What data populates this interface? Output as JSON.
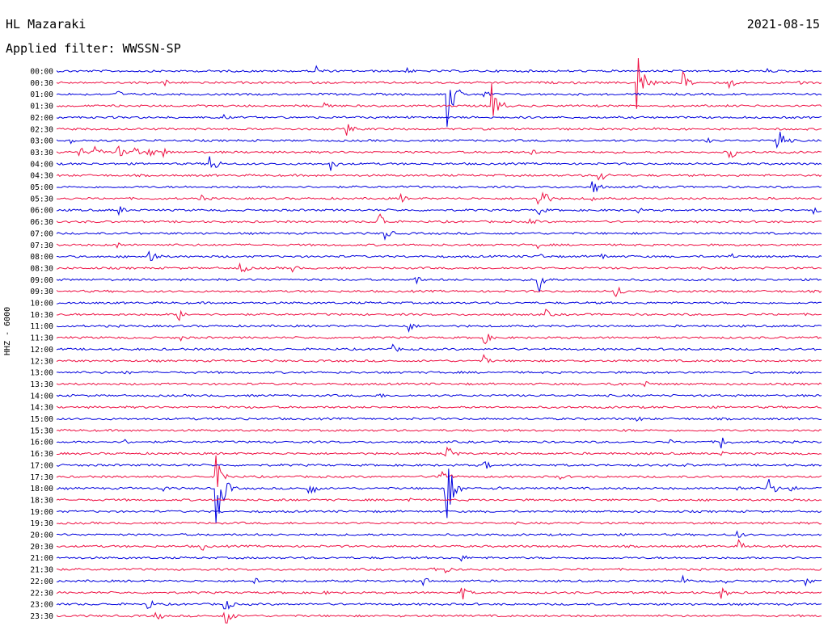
{
  "header": {
    "station": "HL Mazaraki",
    "filter": "Applied filter: WWSSN-SP",
    "date": "2021-08-15",
    "channel": "HHZ - 6000"
  },
  "chart_data": {
    "type": "line",
    "title": "HL Mazaraki",
    "subtitle": "Applied filter: WWSSN-SP",
    "ylabel": "HHZ - 6000",
    "tick_labels": [
      "00:00",
      "00:30",
      "01:00",
      "01:30",
      "02:00",
      "02:30",
      "03:00",
      "03:30",
      "04:00",
      "04:30",
      "05:00",
      "05:30",
      "06:00",
      "06:30",
      "07:00",
      "07:30",
      "08:00",
      "08:30",
      "09:00",
      "09:30",
      "10:00",
      "10:30",
      "11:00",
      "11:30",
      "12:00",
      "12:30",
      "13:00",
      "13:30",
      "14:00",
      "14:30",
      "15:00",
      "15:30",
      "16:00",
      "16:30",
      "17:00",
      "17:30",
      "18:00",
      "18:30",
      "19:00",
      "19:30",
      "20:00",
      "20:30",
      "21:00",
      "21:30",
      "22:00",
      "22:30",
      "23:00",
      "23:30"
    ],
    "trace_colors": [
      "#0000dd",
      "#ee1144"
    ],
    "events": [
      {
        "row": 0,
        "x": 0.34,
        "a": 8
      },
      {
        "row": 0,
        "x": 0.46,
        "a": 4
      },
      {
        "row": 0,
        "x": 0.93,
        "a": 3
      },
      {
        "row": 1,
        "x": 0.14,
        "a": 6
      },
      {
        "row": 1,
        "x": 0.76,
        "a": 40
      },
      {
        "row": 1,
        "x": 0.82,
        "a": 12
      },
      {
        "row": 1,
        "x": 0.88,
        "a": 8
      },
      {
        "row": 1,
        "x": 0.97,
        "a": 6
      },
      {
        "row": 2,
        "x": 0.08,
        "a": 5
      },
      {
        "row": 2,
        "x": 0.51,
        "a": 45
      },
      {
        "row": 2,
        "x": 0.56,
        "a": 6
      },
      {
        "row": 3,
        "x": 0.35,
        "a": 8
      },
      {
        "row": 3,
        "x": 0.57,
        "a": 30
      },
      {
        "row": 4,
        "x": 0.22,
        "a": 3
      },
      {
        "row": 4,
        "x": 0.46,
        "a": 3
      },
      {
        "row": 5,
        "x": 0.38,
        "a": 8
      },
      {
        "row": 5,
        "x": 0.78,
        "a": 3
      },
      {
        "row": 6,
        "x": 0.02,
        "a": 4
      },
      {
        "row": 6,
        "x": 0.85,
        "a": 4
      },
      {
        "row": 6,
        "x": 0.94,
        "a": 30
      },
      {
        "row": 7,
        "x": 0.03,
        "a": 8
      },
      {
        "row": 7,
        "x": 0.05,
        "a": 12
      },
      {
        "row": 7,
        "x": 0.08,
        "a": 10
      },
      {
        "row": 7,
        "x": 0.1,
        "a": 9
      },
      {
        "row": 7,
        "x": 0.12,
        "a": 8
      },
      {
        "row": 7,
        "x": 0.14,
        "a": 7
      },
      {
        "row": 7,
        "x": 0.62,
        "a": 5
      },
      {
        "row": 7,
        "x": 0.88,
        "a": 10
      },
      {
        "row": 8,
        "x": 0.2,
        "a": 18
      },
      {
        "row": 8,
        "x": 0.36,
        "a": 8
      },
      {
        "row": 9,
        "x": 0.71,
        "a": 10
      },
      {
        "row": 10,
        "x": 0.7,
        "a": 12
      },
      {
        "row": 11,
        "x": 0.19,
        "a": 6
      },
      {
        "row": 11,
        "x": 0.45,
        "a": 6
      },
      {
        "row": 11,
        "x": 0.63,
        "a": 24
      },
      {
        "row": 11,
        "x": 0.7,
        "a": 4
      },
      {
        "row": 12,
        "x": 0.08,
        "a": 8
      },
      {
        "row": 12,
        "x": 0.63,
        "a": 8
      },
      {
        "row": 12,
        "x": 0.76,
        "a": 4
      },
      {
        "row": 12,
        "x": 0.99,
        "a": 5
      },
      {
        "row": 13,
        "x": 0.42,
        "a": 18
      },
      {
        "row": 13,
        "x": 0.62,
        "a": 6
      },
      {
        "row": 14,
        "x": 0.43,
        "a": 8
      },
      {
        "row": 15,
        "x": 0.08,
        "a": 4
      },
      {
        "row": 15,
        "x": 0.63,
        "a": 4
      },
      {
        "row": 16,
        "x": 0.12,
        "a": 16
      },
      {
        "row": 16,
        "x": 0.63,
        "a": 6
      },
      {
        "row": 16,
        "x": 0.71,
        "a": 6
      },
      {
        "row": 16,
        "x": 0.88,
        "a": 6
      },
      {
        "row": 17,
        "x": 0.24,
        "a": 10
      },
      {
        "row": 17,
        "x": 0.31,
        "a": 4
      },
      {
        "row": 18,
        "x": 0.47,
        "a": 6
      },
      {
        "row": 18,
        "x": 0.63,
        "a": 20
      },
      {
        "row": 19,
        "x": 0.73,
        "a": 12
      },
      {
        "row": 21,
        "x": 0.16,
        "a": 8
      },
      {
        "row": 21,
        "x": 0.64,
        "a": 6
      },
      {
        "row": 22,
        "x": 0.22,
        "a": 3
      },
      {
        "row": 22,
        "x": 0.46,
        "a": 8
      },
      {
        "row": 23,
        "x": 0.16,
        "a": 6
      },
      {
        "row": 23,
        "x": 0.56,
        "a": 8
      },
      {
        "row": 24,
        "x": 0.44,
        "a": 6
      },
      {
        "row": 25,
        "x": 0.56,
        "a": 6
      },
      {
        "row": 26,
        "x": 0.09,
        "a": 4
      },
      {
        "row": 26,
        "x": 0.44,
        "a": 4
      },
      {
        "row": 27,
        "x": 0.73,
        "a": 7
      },
      {
        "row": 27,
        "x": 0.77,
        "a": 5
      },
      {
        "row": 28,
        "x": 0.42,
        "a": 5
      },
      {
        "row": 29,
        "x": 0.25,
        "a": 3
      },
      {
        "row": 30,
        "x": 0.24,
        "a": 4
      },
      {
        "row": 30,
        "x": 0.76,
        "a": 4
      },
      {
        "row": 31,
        "x": 0.74,
        "a": 3
      },
      {
        "row": 32,
        "x": 0.09,
        "a": 4
      },
      {
        "row": 32,
        "x": 0.8,
        "a": 4
      },
      {
        "row": 32,
        "x": 0.87,
        "a": 10
      },
      {
        "row": 33,
        "x": 0.51,
        "a": 14
      },
      {
        "row": 33,
        "x": 0.87,
        "a": 3
      },
      {
        "row": 34,
        "x": 0.17,
        "a": 3
      },
      {
        "row": 34,
        "x": 0.56,
        "a": 6
      },
      {
        "row": 34,
        "x": 0.82,
        "a": 4
      },
      {
        "row": 35,
        "x": 0.21,
        "a": 22
      },
      {
        "row": 35,
        "x": 0.5,
        "a": 22
      },
      {
        "row": 35,
        "x": 0.66,
        "a": 4
      },
      {
        "row": 36,
        "x": 0.14,
        "a": 5
      },
      {
        "row": 36,
        "x": 0.21,
        "a": 45
      },
      {
        "row": 36,
        "x": 0.33,
        "a": 12
      },
      {
        "row": 36,
        "x": 0.51,
        "a": 40
      },
      {
        "row": 36,
        "x": 0.58,
        "a": 5
      },
      {
        "row": 36,
        "x": 0.89,
        "a": 5
      },
      {
        "row": 36,
        "x": 0.93,
        "a": 16
      },
      {
        "row": 36,
        "x": 0.96,
        "a": 5
      },
      {
        "row": 37,
        "x": 0.29,
        "a": 4
      },
      {
        "row": 37,
        "x": 0.46,
        "a": 4
      },
      {
        "row": 40,
        "x": 0.89,
        "a": 6
      },
      {
        "row": 41,
        "x": 0.19,
        "a": 6
      },
      {
        "row": 41,
        "x": 0.89,
        "a": 10
      },
      {
        "row": 42,
        "x": 0.53,
        "a": 5
      },
      {
        "row": 43,
        "x": 0.49,
        "a": 5
      },
      {
        "row": 43,
        "x": 0.51,
        "a": 4
      },
      {
        "row": 44,
        "x": 0.26,
        "a": 6
      },
      {
        "row": 44,
        "x": 0.48,
        "a": 6
      },
      {
        "row": 44,
        "x": 0.82,
        "a": 6
      },
      {
        "row": 44,
        "x": 0.87,
        "a": 6
      },
      {
        "row": 44,
        "x": 0.98,
        "a": 5
      },
      {
        "row": 45,
        "x": 0.35,
        "a": 3
      },
      {
        "row": 45,
        "x": 0.53,
        "a": 10
      },
      {
        "row": 45,
        "x": 0.87,
        "a": 8
      },
      {
        "row": 46,
        "x": 0.12,
        "a": 8
      },
      {
        "row": 46,
        "x": 0.22,
        "a": 10
      },
      {
        "row": 47,
        "x": 0.13,
        "a": 8
      },
      {
        "row": 47,
        "x": 0.22,
        "a": 14
      }
    ]
  }
}
